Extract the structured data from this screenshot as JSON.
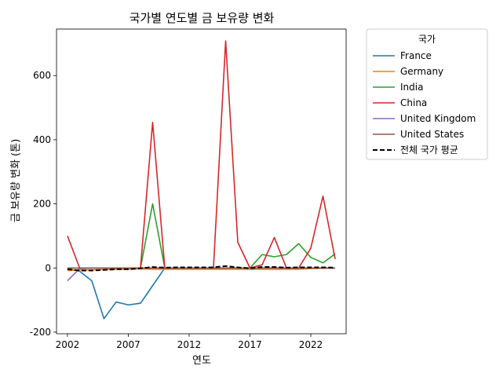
{
  "chart_data": {
    "type": "line",
    "title": "국가별 연도별 금 보유량 변화",
    "xlabel": "연도",
    "ylabel": "금 보유량 변화 (톤)",
    "xlim": [
      2001.1,
      2024.9
    ],
    "ylim": [
      -205,
      745
    ],
    "xticks": [
      2002,
      2007,
      2012,
      2017,
      2022
    ],
    "yticks": [
      -200,
      0,
      200,
      400,
      600
    ],
    "grid": false,
    "legend": {
      "title": "국가",
      "placement": "outside-right"
    },
    "x": [
      2002,
      2003,
      2004,
      2005,
      2006,
      2007,
      2008,
      2009,
      2010,
      2011,
      2012,
      2013,
      2014,
      2015,
      2016,
      2017,
      2018,
      2019,
      2020,
      2021,
      2022,
      2023,
      2024
    ],
    "series": [
      {
        "name": "France",
        "color": "#1f77b4",
        "dash": "solid",
        "values": [
          -2,
          -10,
          -40,
          -158,
          -106,
          -115,
          -110,
          -55,
          0,
          0,
          0,
          0,
          0,
          0,
          0,
          0,
          0,
          0,
          0,
          0,
          0,
          0,
          0
        ]
      },
      {
        "name": "Germany",
        "color": "#ff7f0e",
        "dash": "solid",
        "values": [
          -8,
          -6,
          -6,
          -5,
          -4,
          -4,
          -3,
          -4,
          -4,
          -4,
          -4,
          -4,
          -4,
          -4,
          -4,
          -4,
          -4,
          -4,
          -4,
          -4,
          -2,
          -1,
          0
        ]
      },
      {
        "name": "India",
        "color": "#2ca02c",
        "dash": "solid",
        "values": [
          0,
          0,
          0,
          0,
          0,
          0,
          0,
          200,
          0,
          0,
          0,
          0,
          0,
          0,
          0,
          0,
          42,
          35,
          42,
          76,
          33,
          16,
          44
        ]
      },
      {
        "name": "China",
        "color": "#d62728",
        "dash": "solid",
        "values": [
          100,
          0,
          0,
          0,
          0,
          0,
          0,
          454,
          0,
          0,
          0,
          0,
          0,
          708,
          80,
          0,
          10,
          95,
          0,
          0,
          62,
          224,
          28
        ]
      },
      {
        "name": "United Kingdom",
        "color": "#9467bd",
        "dash": "solid",
        "values": [
          -40,
          -2,
          0,
          0,
          0,
          0,
          0,
          0,
          0,
          0,
          0,
          0,
          0,
          0,
          0,
          0,
          0,
          0,
          0,
          0,
          0,
          0,
          0
        ]
      },
      {
        "name": "United States",
        "color": "#8c564b",
        "dash": "solid",
        "values": [
          0,
          0,
          0,
          0,
          0,
          0,
          0,
          0,
          0,
          0,
          0,
          0,
          0,
          0,
          0,
          0,
          0,
          0,
          0,
          0,
          0,
          0,
          0
        ]
      },
      {
        "name": "전체 국가 평균",
        "color": "#000000",
        "dash": "dashed",
        "values": [
          -4,
          -8,
          -8,
          -6,
          -4,
          -4,
          -1,
          3,
          1,
          2,
          2,
          2,
          2,
          6,
          2,
          -1,
          3,
          3,
          1,
          2,
          2,
          2,
          1
        ]
      }
    ]
  }
}
